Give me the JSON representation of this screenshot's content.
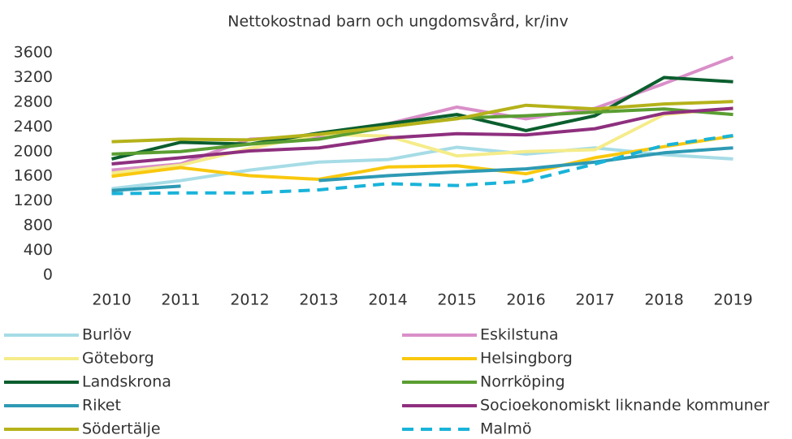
{
  "chart_data": {
    "type": "line",
    "title": "Nettokostnad barn och ungdomsvård, kr/inv",
    "categories": [
      "2010",
      "2011",
      "2012",
      "2013",
      "2014",
      "2015",
      "2016",
      "2017",
      "2018",
      "2019"
    ],
    "ylim": [
      0,
      3600
    ],
    "yticks": [
      0,
      400,
      800,
      1200,
      1600,
      2000,
      2400,
      2800,
      3200,
      3600
    ],
    "grid": false,
    "series": [
      {
        "name": "Burlöv",
        "color": "#a6dce6",
        "values": [
          1400,
          1530,
          1700,
          1830,
          1870,
          2070,
          1960,
          2060,
          1950,
          1880
        ]
      },
      {
        "name": "Eskilstuna",
        "color": "#d98fc8",
        "values": [
          1700,
          1800,
          2200,
          2250,
          2450,
          2720,
          2530,
          2700,
          3100,
          3530
        ]
      },
      {
        "name": "Göteborg",
        "color": "#f5ec8a",
        "values": [
          1650,
          1780,
          2050,
          2280,
          2250,
          1930,
          2000,
          2030,
          2600,
          2700
        ]
      },
      {
        "name": "Helsingborg",
        "color": "#f9c80e",
        "values": [
          1600,
          1740,
          1610,
          1550,
          1750,
          1770,
          1640,
          1900,
          2080,
          2250
        ]
      },
      {
        "name": "Landskrona",
        "color": "#0b5e2e",
        "values": [
          1880,
          2150,
          2120,
          2300,
          2450,
          2600,
          2340,
          2580,
          3200,
          3130
        ]
      },
      {
        "name": "Norrköping",
        "color": "#5a9e32",
        "values": [
          1960,
          2000,
          2120,
          2200,
          2400,
          2540,
          2580,
          2640,
          2690,
          2600
        ]
      },
      {
        "name": "Riket",
        "color": "#2e9ab4",
        "values": [
          1370,
          1440,
          null,
          1530,
          1610,
          1670,
          1720,
          1830,
          1980,
          2060
        ]
      },
      {
        "name": "Socioekonomiskt liknande kommuner",
        "color": "#8e2f7e",
        "values": [
          1800,
          1900,
          2010,
          2060,
          2220,
          2290,
          2270,
          2370,
          2620,
          2700
        ]
      },
      {
        "name": "Södertälje",
        "color": "#b5b21a",
        "values": [
          2160,
          2200,
          2190,
          2280,
          2400,
          2530,
          2750,
          2690,
          2770,
          2810
        ]
      },
      {
        "name": "Malmö",
        "color": "#19b3d9",
        "dashed": true,
        "values": [
          1320,
          1330,
          1330,
          1380,
          1480,
          1450,
          1520,
          1800,
          2100,
          2260
        ]
      }
    ]
  }
}
